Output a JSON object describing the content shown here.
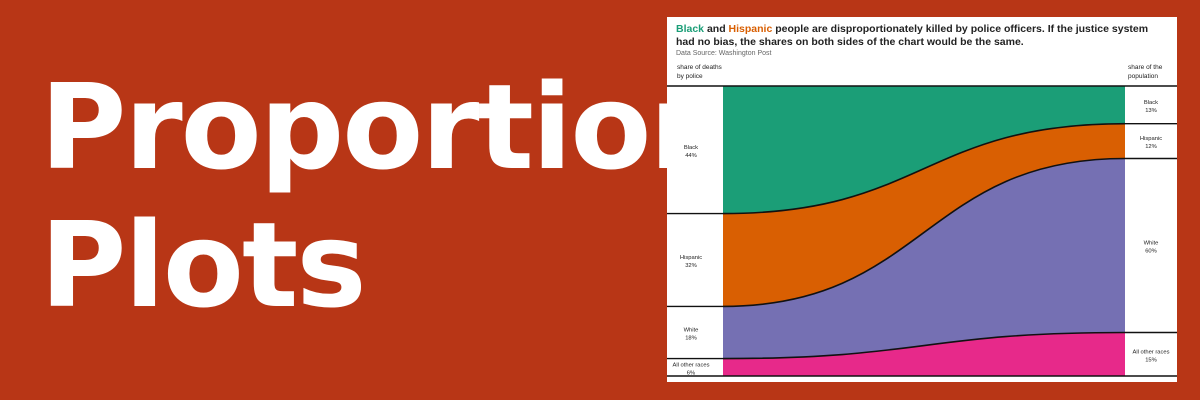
{
  "banner": {
    "title_line1": "Proportion",
    "title_line2": "Plots"
  },
  "chart_data": {
    "type": "proportion-flow",
    "title_parts": {
      "black": "Black",
      "and": " and ",
      "hispanic": "Hispanic",
      "rest": " people are disproportionately killed by police officers. If the justice system had no bias, the shares on both sides of the chart would be the same."
    },
    "source": "Data Source: Washington Post",
    "left_header": [
      "share of deaths",
      "by police"
    ],
    "right_header": [
      "share of the",
      "population"
    ],
    "categories": [
      {
        "name": "Black",
        "left": 44,
        "right": 13,
        "color": "#1b9e77"
      },
      {
        "name": "Hispanic",
        "left": 32,
        "right": 12,
        "color": "#d95f02"
      },
      {
        "name": "White",
        "left": 18,
        "right": 60,
        "color": "#7570b3"
      },
      {
        "name": "All other races",
        "left": 6,
        "right": 15,
        "color": "#e7298a"
      }
    ],
    "left_labels": [
      {
        "name": "Black",
        "value": "44%"
      },
      {
        "name": "Hispanic",
        "value": "32%"
      },
      {
        "name": "White",
        "value": "18%"
      },
      {
        "name": "All other races",
        "value": "6%"
      }
    ],
    "right_labels": [
      {
        "name": "Black",
        "value": "13%"
      },
      {
        "name": "Hispanic",
        "value": "12%"
      },
      {
        "name": "White",
        "value": "60%"
      },
      {
        "name": "All other races",
        "value": "15%"
      }
    ]
  }
}
